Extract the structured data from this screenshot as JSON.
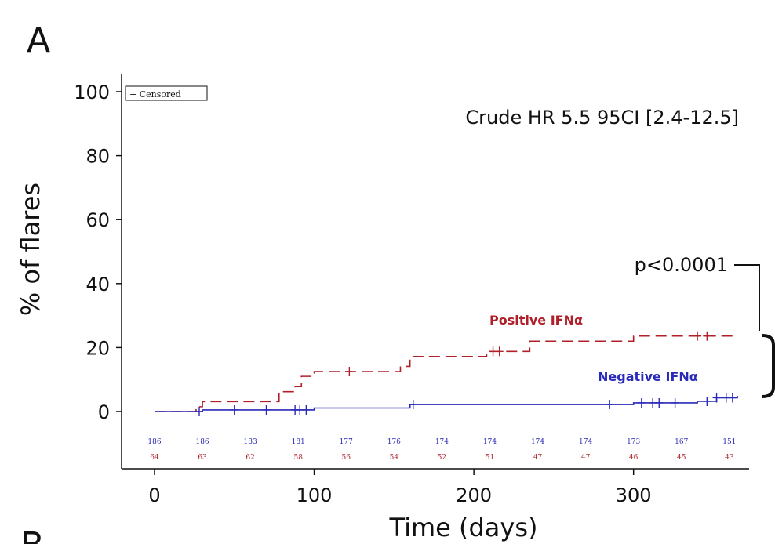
{
  "panel_label": "A",
  "next_panel_label": "B",
  "chart_data": {
    "type": "line",
    "title": "",
    "xlabel": "Time (days)",
    "ylabel": "% of flares",
    "xlim": [
      0,
      365
    ],
    "ylim": [
      0,
      100
    ],
    "x_ticks": [
      0,
      100,
      200,
      300
    ],
    "y_ticks": [
      0,
      20,
      40,
      60,
      80,
      100
    ],
    "grid": false,
    "legend": {
      "position": "top-left",
      "label": "+ Censored"
    },
    "annotations": {
      "hazard_ratio": "Crude HR 5.5 95CI [2.4-12.5]",
      "p_value": "p<0.0001"
    },
    "series": [
      {
        "name": "Positive IFNα",
        "color": "#b0202a",
        "line_style": "dashed",
        "x": [
          0,
          22,
          26,
          30,
          62,
          78,
          88,
          92,
          100,
          154,
          160,
          208,
          235,
          300,
          365
        ],
        "y": [
          0,
          0,
          1.5,
          3.1,
          3.1,
          6.2,
          7.8,
          11.0,
          12.5,
          14.1,
          17.2,
          18.8,
          22.0,
          23.6,
          23.6
        ],
        "censored_x": [
          122,
          212,
          216,
          340,
          346
        ]
      },
      {
        "name": "Negative IFNα",
        "color": "#2a2ab8",
        "line_style": "solid",
        "x": [
          0,
          30,
          100,
          160,
          300,
          340,
          352,
          365
        ],
        "y": [
          0,
          0.5,
          1.1,
          2.2,
          2.7,
          3.2,
          4.3,
          4.9
        ],
        "censored_x": [
          28,
          50,
          70,
          88,
          91,
          95,
          162,
          285,
          305,
          312,
          316,
          326,
          346,
          352,
          358,
          362
        ]
      }
    ],
    "risk_table": {
      "times": [
        0,
        30,
        60,
        90,
        120,
        150,
        180,
        210,
        240,
        270,
        300,
        330,
        360
      ],
      "negative": [
        186,
        186,
        183,
        181,
        177,
        176,
        174,
        174,
        174,
        174,
        173,
        167,
        151
      ],
      "positive": [
        64,
        63,
        62,
        58,
        56,
        54,
        52,
        51,
        47,
        47,
        46,
        45,
        43
      ]
    }
  }
}
